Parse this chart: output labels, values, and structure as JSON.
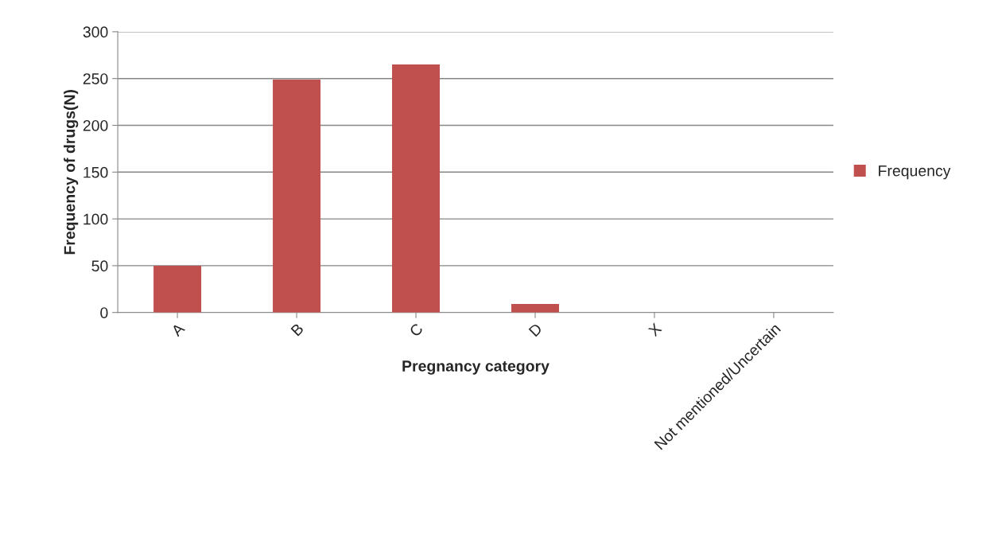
{
  "chart_data": {
    "type": "bar",
    "xlabel": "Pregnancy category",
    "ylabel": "Frequency of drugs(N)",
    "categories": [
      "A",
      "B",
      "C",
      "D",
      "X",
      "Not mentioned/Uncertain"
    ],
    "series": [
      {
        "name": "Frequency",
        "color": "#c0504d",
        "values": [
          50,
          249,
          265,
          9,
          0,
          0
        ]
      }
    ],
    "ylim": [
      0,
      300
    ],
    "yticks": [
      0,
      50,
      100,
      150,
      200,
      250,
      300
    ],
    "grid": "y",
    "legend": "right"
  }
}
